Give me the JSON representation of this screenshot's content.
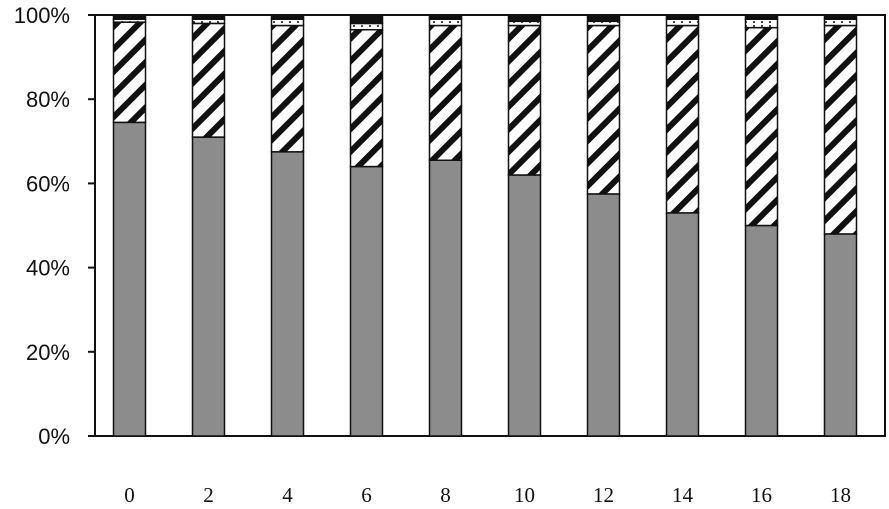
{
  "chart_data": {
    "type": "bar",
    "stacked": true,
    "percent": true,
    "categories": [
      "0",
      "2",
      "4",
      "6",
      "8",
      "10",
      "12",
      "14",
      "16",
      "18"
    ],
    "series": [
      {
        "fill": "gray",
        "values": [
          74.5,
          71,
          67.5,
          64,
          65.5,
          62,
          57.5,
          53,
          50,
          48
        ]
      },
      {
        "fill": "diagonal-hatch",
        "values": [
          23.8,
          27,
          30,
          32.5,
          32,
          35.5,
          40,
          44.5,
          47,
          49.5
        ]
      },
      {
        "fill": "white-dotted",
        "values": [
          0.7,
          1,
          1.5,
          1.5,
          1.5,
          1,
          1,
          1.5,
          2,
          1.5
        ]
      },
      {
        "fill": "black",
        "values": [
          1,
          1,
          1,
          2,
          1,
          1.5,
          1.5,
          1,
          1,
          1
        ]
      }
    ],
    "yticks": [
      "0%",
      "20%",
      "40%",
      "60%",
      "80%",
      "100%"
    ],
    "ylim": [
      0,
      100
    ],
    "grid": false,
    "colors": {
      "gray": "#8c8c8c",
      "black": "#111111"
    }
  }
}
